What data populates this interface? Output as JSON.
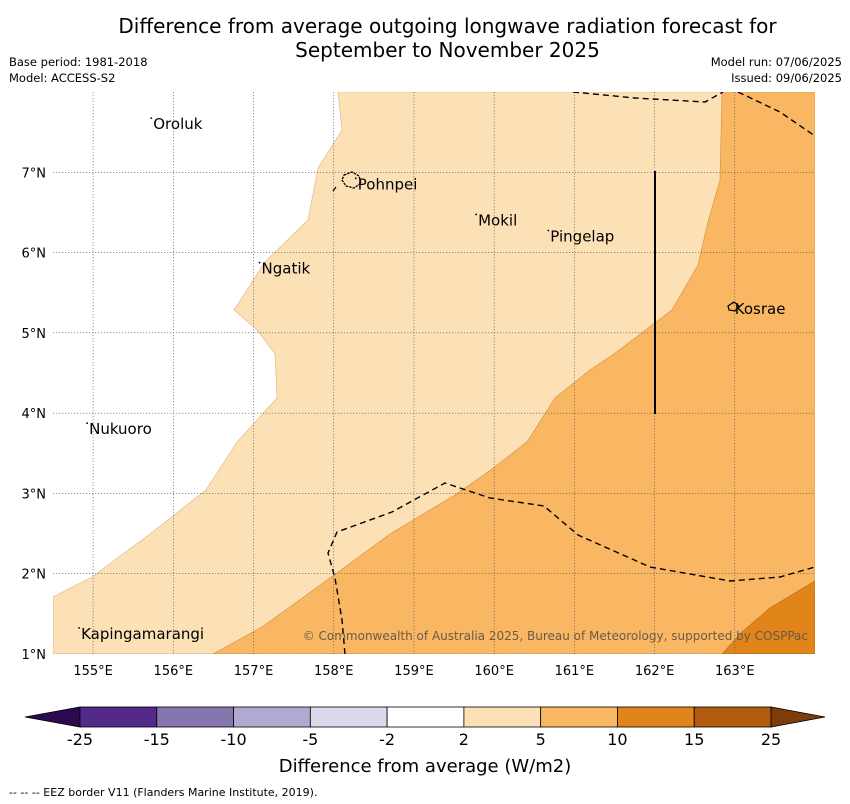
{
  "title_line1": "Difference from average outgoing longwave radiation forecast for",
  "title_line2": "September to November 2025",
  "base_period": "Base period: 1981-2018",
  "model": "Model: ACCESS-S2",
  "model_run": "Model run: 07/06/2025",
  "issued": "Issued: 09/06/2025",
  "map": {
    "lon_range": [
      154.5,
      164.0
    ],
    "lat_range": [
      1.0,
      8.0
    ],
    "lon_ticks": [
      "155°E",
      "156°E",
      "157°E",
      "158°E",
      "159°E",
      "160°E",
      "161°E",
      "162°E",
      "163°E"
    ],
    "lat_ticks": [
      "1°N",
      "2°N",
      "3°N",
      "4°N",
      "5°N",
      "6°N",
      "7°N"
    ],
    "places": [
      {
        "name": "Oroluk",
        "lon": 155.75,
        "lat": 7.6
      },
      {
        "name": "Pohnpei",
        "lon": 158.3,
        "lat": 6.85
      },
      {
        "name": "Mokil",
        "lon": 159.8,
        "lat": 6.4
      },
      {
        "name": "Pingelap",
        "lon": 160.7,
        "lat": 6.2
      },
      {
        "name": "Ngatik",
        "lon": 157.1,
        "lat": 5.8
      },
      {
        "name": "Kosrae",
        "lon": 163.0,
        "lat": 5.3
      },
      {
        "name": "Nukuoro",
        "lon": 154.95,
        "lat": 3.8
      },
      {
        "name": "Kapingamarangi",
        "lon": 154.85,
        "lat": 1.25
      }
    ],
    "copyright": "© Commonwealth of Australia 2025, Bureau of Meteorology, supported by COSPPac"
  },
  "colorbar": {
    "labels": [
      "-25",
      "-15",
      "-10",
      "-5",
      "-2",
      "2",
      "5",
      "10",
      "15",
      "25"
    ],
    "colors": [
      "#532a8a",
      "#8676ad",
      "#b1a9d2",
      "#dadaec",
      "#ffffff",
      "#fce0b6",
      "#f9b763",
      "#e1841a",
      "#b15b0f"
    ],
    "under_color": "#2c0a4f",
    "over_color": "#7d3d0b",
    "title": "Difference from average (W/m2)"
  },
  "footnote": "--  --  -- EEZ border V11 (Flanders Marine Institute, 2019)."
}
